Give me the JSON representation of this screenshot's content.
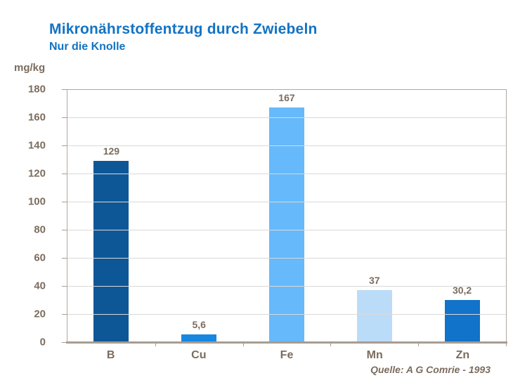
{
  "header": {
    "title": "Mikronährstoffentzug durch Zwiebeln",
    "subtitle": "Nur die Knolle"
  },
  "source_label": "Quelle: A G Comrie - 1993",
  "colors": {
    "title_text": "#1273C4",
    "axis_text": "#7B6C5E",
    "plot_border": "#B3A79E",
    "axis_line": "#A89C91",
    "gridline": "#D9D9D9",
    "background": "#FFFFFF"
  },
  "chart_data": {
    "type": "bar",
    "title": "Mikronährstoffentzug durch Zwiebeln",
    "subtitle": "Nur die Knolle",
    "ylabel": "mg/kg",
    "xlabel": "",
    "categories": [
      "B",
      "Cu",
      "Fe",
      "Mn",
      "Zn"
    ],
    "values": [
      129,
      5.6,
      167,
      37,
      30.2
    ],
    "value_labels": [
      "129",
      "5,6",
      "167",
      "37",
      "30,2"
    ],
    "bar_colors": [
      "#0E5796",
      "#1787E0",
      "#66B9FA",
      "#BADCF9",
      "#1173C9"
    ],
    "ylim": [
      0,
      180
    ],
    "ytick_step": 20,
    "grid": true,
    "legend_position": "none"
  }
}
